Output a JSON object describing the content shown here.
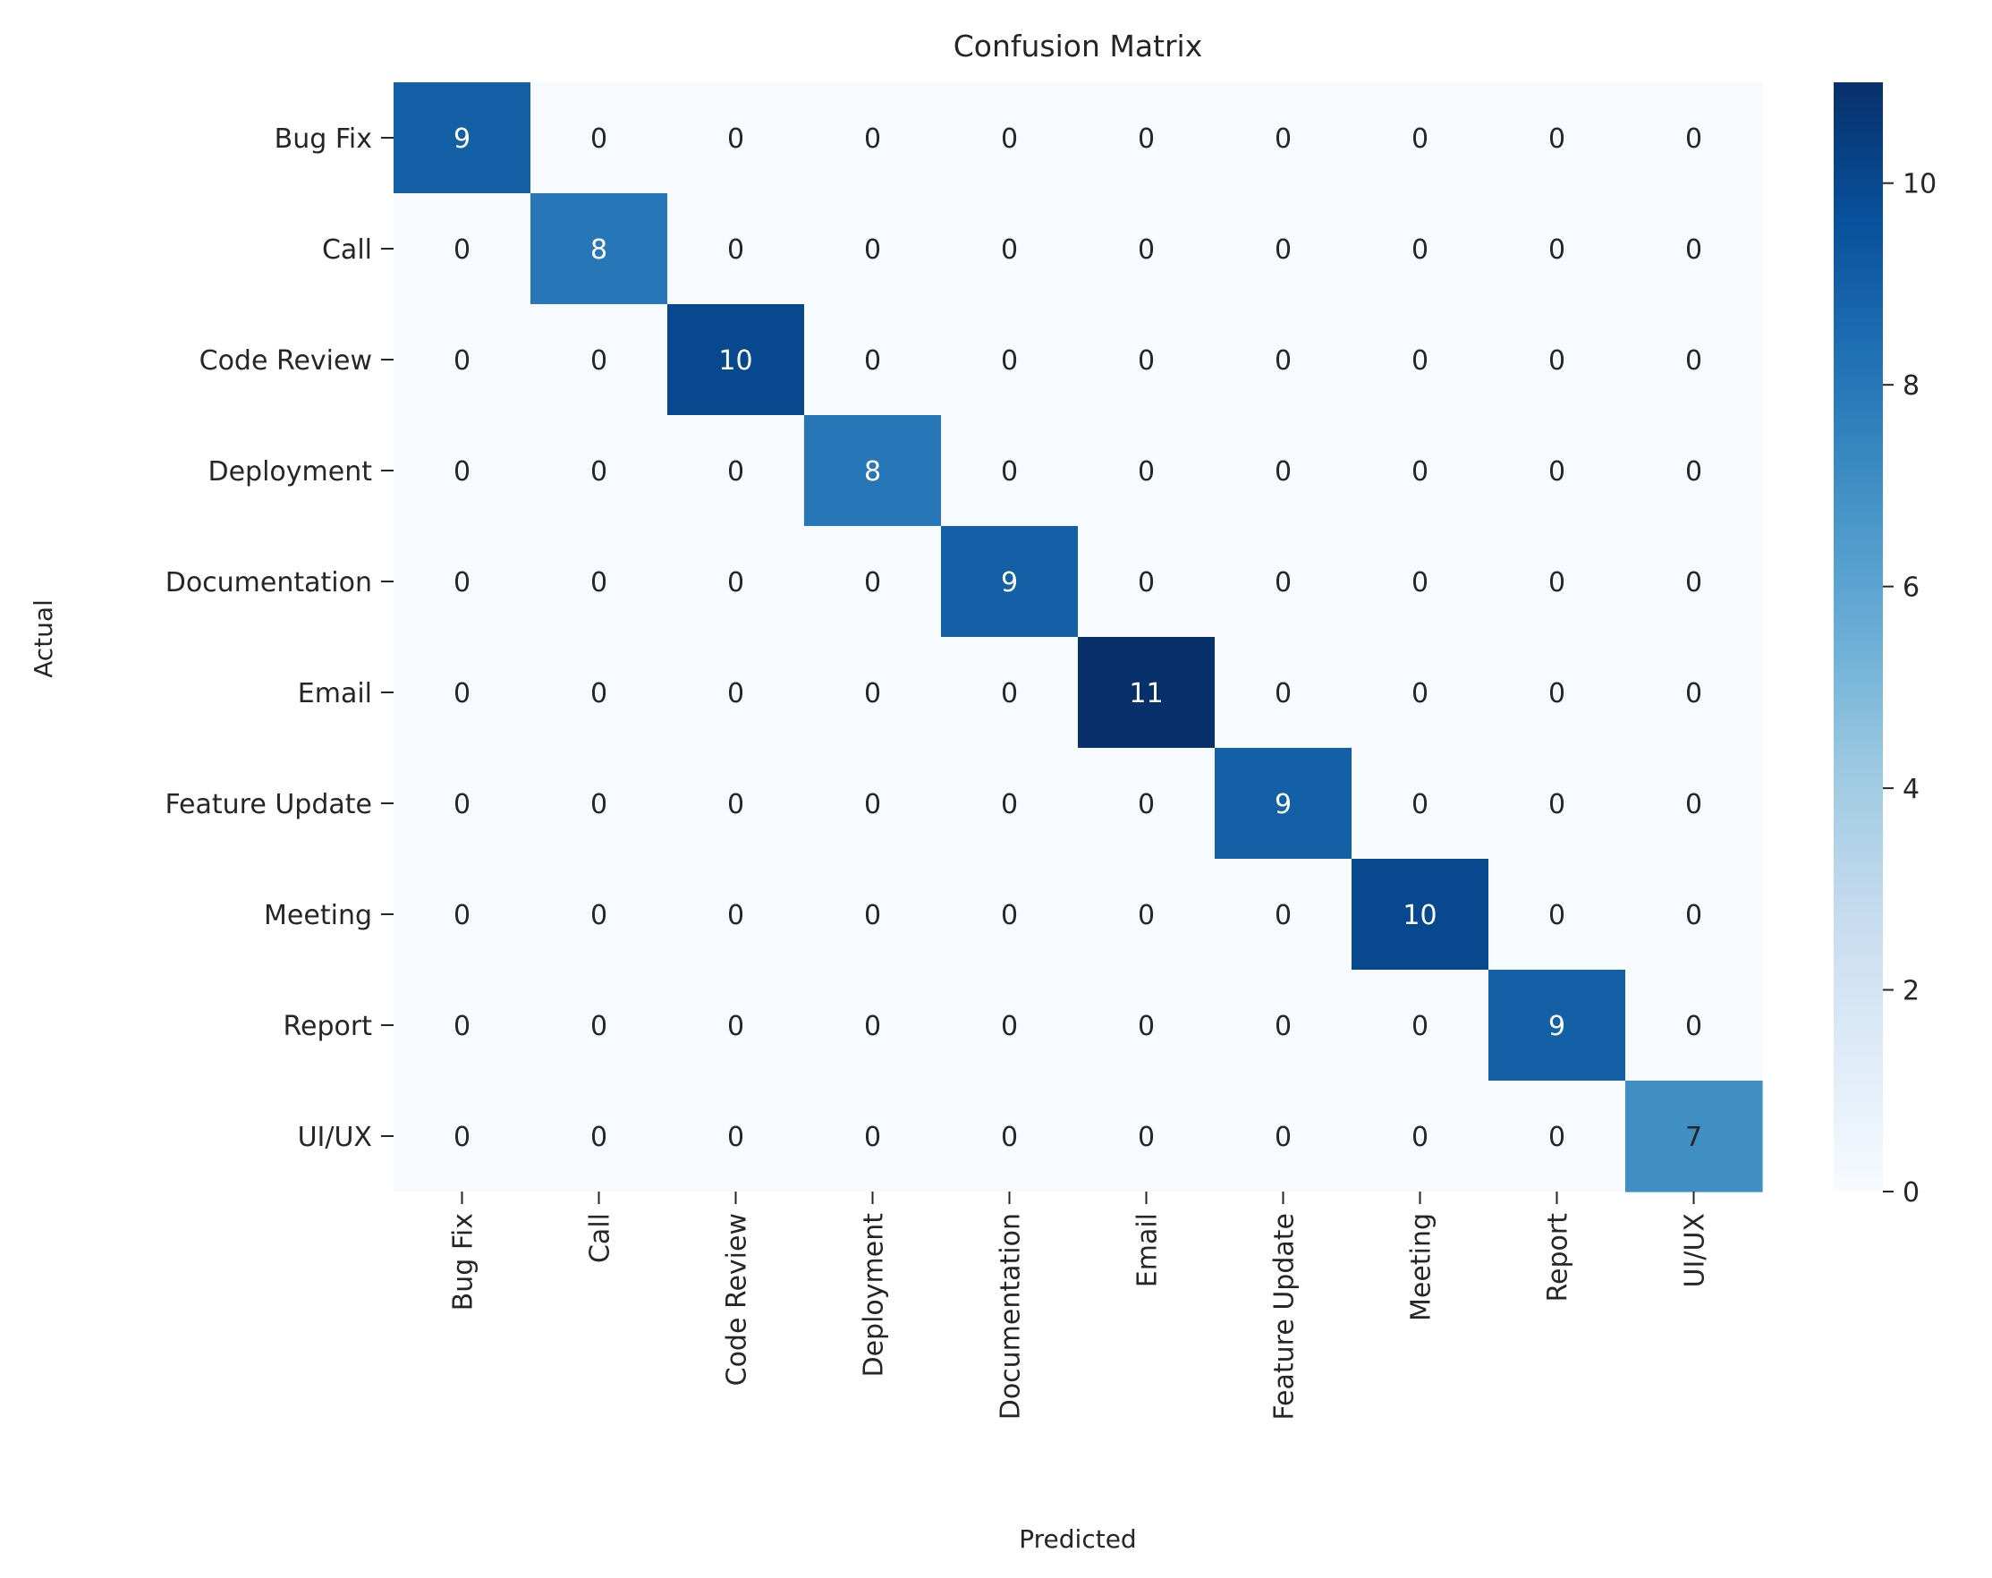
{
  "chart_data": {
    "type": "heatmap",
    "title": "Confusion Matrix",
    "xlabel": "Predicted",
    "ylabel": "Actual",
    "x_categories": [
      "Bug Fix",
      "Call",
      "Code Review",
      "Deployment",
      "Documentation",
      "Email",
      "Feature Update",
      "Meeting",
      "Report",
      "UI/UX"
    ],
    "y_categories": [
      "Bug Fix",
      "Call",
      "Code Review",
      "Deployment",
      "Documentation",
      "Email",
      "Feature Update",
      "Meeting",
      "Report",
      "UI/UX"
    ],
    "values": [
      [
        9,
        0,
        0,
        0,
        0,
        0,
        0,
        0,
        0,
        0
      ],
      [
        0,
        8,
        0,
        0,
        0,
        0,
        0,
        0,
        0,
        0
      ],
      [
        0,
        0,
        10,
        0,
        0,
        0,
        0,
        0,
        0,
        0
      ],
      [
        0,
        0,
        0,
        8,
        0,
        0,
        0,
        0,
        0,
        0
      ],
      [
        0,
        0,
        0,
        0,
        9,
        0,
        0,
        0,
        0,
        0
      ],
      [
        0,
        0,
        0,
        0,
        0,
        11,
        0,
        0,
        0,
        0
      ],
      [
        0,
        0,
        0,
        0,
        0,
        0,
        9,
        0,
        0,
        0
      ],
      [
        0,
        0,
        0,
        0,
        0,
        0,
        0,
        10,
        0,
        0
      ],
      [
        0,
        0,
        0,
        0,
        0,
        0,
        0,
        0,
        9,
        0
      ],
      [
        0,
        0,
        0,
        0,
        0,
        0,
        0,
        0,
        0,
        7
      ]
    ],
    "annotations": true,
    "colormap": "Blues",
    "colorbar": {
      "range": [
        0,
        11
      ],
      "ticks": [
        0,
        2,
        4,
        6,
        8,
        10
      ]
    }
  }
}
